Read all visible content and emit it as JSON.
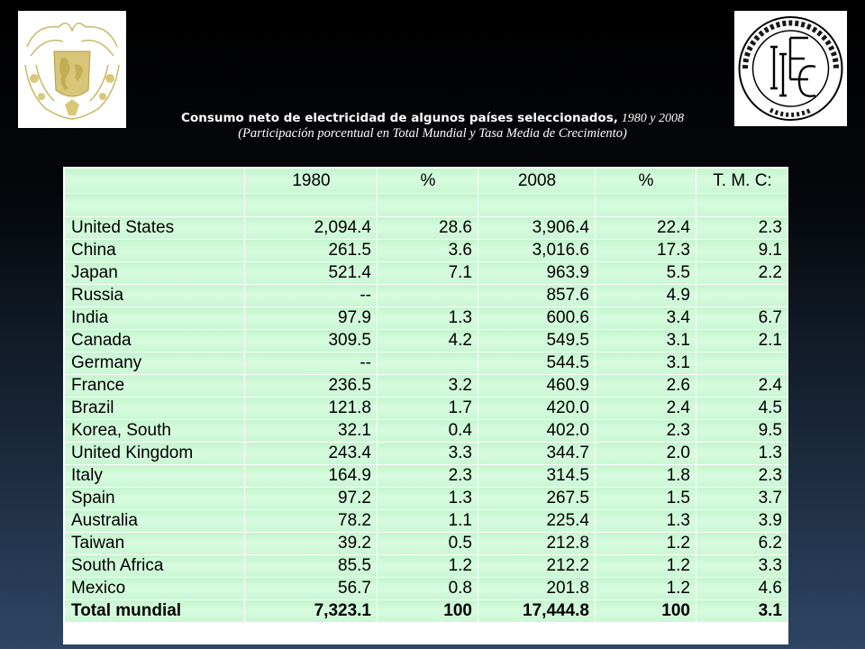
{
  "title": {
    "main": "Consumo neto de electricidad de algunos países seleccionados,",
    "years": "1980 y 2008",
    "subtitle": "(Participación porcentual en Total Mundial y Tasa Media de Crecimiento)"
  },
  "logos": {
    "left": "unam-escudo-logo",
    "right": "iiec-unam-logo"
  },
  "table": {
    "headers": [
      "",
      "1980",
      "%",
      "2008",
      "%",
      "T. M. C:"
    ],
    "rows": [
      [
        "United States",
        "2,094.4",
        "28.6",
        "3,906.4",
        "22.4",
        "2.3"
      ],
      [
        "China",
        "261.5",
        "3.6",
        "3,016.6",
        "17.3",
        "9.1"
      ],
      [
        "Japan",
        "521.4",
        "7.1",
        "963.9",
        "5.5",
        "2.2"
      ],
      [
        "Russia",
        "--",
        "",
        "857.6",
        "4.9",
        ""
      ],
      [
        "India",
        "97.9",
        "1.3",
        "600.6",
        "3.4",
        "6.7"
      ],
      [
        "Canada",
        "309.5",
        "4.2",
        "549.5",
        "3.1",
        "2.1"
      ],
      [
        "Germany",
        "--",
        "",
        "544.5",
        "3.1",
        ""
      ],
      [
        "France",
        "236.5",
        "3.2",
        "460.9",
        "2.6",
        "2.4"
      ],
      [
        "Brazil",
        "121.8",
        "1.7",
        "420.0",
        "2.4",
        "4.5"
      ],
      [
        "Korea, South",
        "32.1",
        "0.4",
        "402.0",
        "2.3",
        "9.5"
      ],
      [
        "United Kingdom",
        "243.4",
        "3.3",
        "344.7",
        "2.0",
        "1.3"
      ],
      [
        "Italy",
        "164.9",
        "2.3",
        "314.5",
        "1.8",
        "2.3"
      ],
      [
        "Spain",
        "97.2",
        "1.3",
        "267.5",
        "1.5",
        "3.7"
      ],
      [
        "Australia",
        "78.2",
        "1.1",
        "225.4",
        "1.3",
        "3.9"
      ],
      [
        "Taiwan",
        "39.2",
        "0.5",
        "212.8",
        "1.2",
        "6.2"
      ],
      [
        "South Africa",
        "85.5",
        "1.2",
        "212.2",
        "1.2",
        "3.3"
      ],
      [
        "Mexico",
        "56.7",
        "0.8",
        "201.8",
        "1.2",
        "4.6"
      ]
    ],
    "total": [
      "Total mundial",
      "7,323.1",
      "100",
      "17,444.8",
      "100",
      "3.1"
    ]
  }
}
